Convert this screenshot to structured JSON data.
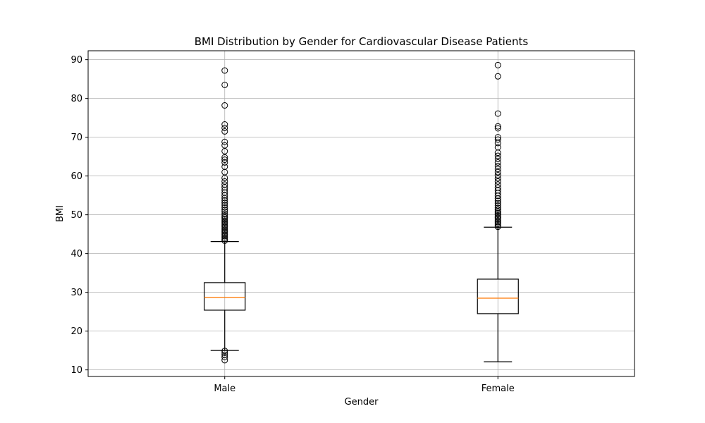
{
  "chart_data": {
    "type": "boxplot",
    "title": "BMI Distribution by Gender for Cardiovascular Disease Patients",
    "xlabel": "Gender",
    "ylabel": "BMI",
    "categories": [
      "Male",
      "Female"
    ],
    "ylim": [
      8.3,
      92.3
    ],
    "yticks": [
      10,
      20,
      30,
      40,
      50,
      60,
      70,
      80,
      90
    ],
    "grid": true,
    "series": [
      {
        "category": "Male",
        "whisker_low": 15.0,
        "q1": 25.4,
        "median": 28.7,
        "q3": 32.5,
        "whisker_high": 43.1,
        "outliers_low": [
          12.5,
          13.3,
          13.9,
          14.4,
          14.9
        ],
        "outliers_high": [
          43.3,
          43.7,
          44.1,
          44.5,
          44.9,
          45.3,
          45.7,
          46.1,
          46.5,
          46.9,
          47.3,
          47.7,
          48.1,
          48.5,
          48.9,
          49.3,
          49.7,
          50.2,
          50.8,
          51.3,
          51.9,
          52.5,
          53.1,
          53.7,
          54.3,
          55.0,
          55.7,
          56.4,
          57.1,
          57.8,
          58.6,
          59.5,
          61.0,
          62.4,
          63.5,
          64.2,
          64.8,
          66.4,
          67.9,
          68.8,
          71.5,
          72.4,
          73.3,
          78.2,
          83.5,
          87.2
        ]
      },
      {
        "category": "Female",
        "whisker_low": 12.1,
        "q1": 24.5,
        "median": 28.5,
        "q3": 33.4,
        "whisker_high": 46.8,
        "outliers_low": [],
        "outliers_high": [
          46.9,
          47.3,
          47.7,
          48.1,
          48.5,
          48.9,
          49.3,
          49.7,
          50.1,
          50.5,
          50.9,
          51.3,
          51.8,
          52.4,
          53.0,
          53.6,
          54.2,
          54.9,
          55.6,
          56.3,
          57.0,
          57.8,
          58.6,
          59.4,
          60.2,
          61.0,
          61.8,
          62.6,
          63.5,
          64.4,
          65.2,
          66.0,
          67.4,
          68.5,
          69.4,
          70.0,
          72.3,
          72.8,
          76.1,
          85.7,
          88.6
        ]
      }
    ]
  }
}
